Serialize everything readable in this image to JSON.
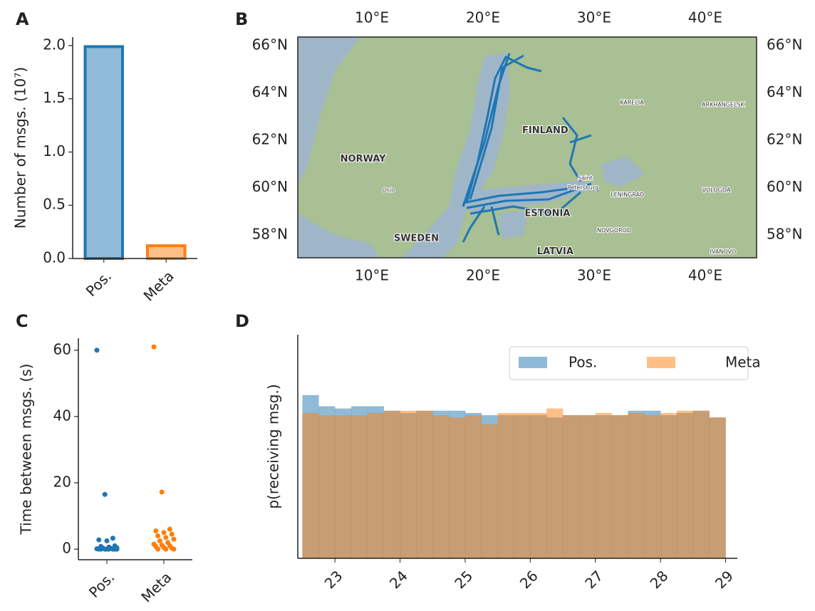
{
  "chart_data": [
    {
      "type": "bar",
      "panel_label": "A",
      "y_label": "Number of msgs. (10⁷)",
      "categories": [
        "Pos.",
        "Meta"
      ],
      "values": [
        1.99,
        0.12
      ],
      "colors": [
        "#8fbbd9",
        "#ffbf86"
      ],
      "edge_colors": [
        "#1f77b4",
        "#ff7f0e"
      ],
      "ylim": [
        0,
        2.08
      ],
      "yticks": [
        {
          "value": 0,
          "label": "0.0"
        },
        0.5,
        {
          "value": 1,
          "label": "1.0"
        },
        1.5,
        {
          "value": 2,
          "label": "2.0"
        }
      ]
    },
    {
      "type": "map",
      "panel_label": "B",
      "xlim": [
        3.33,
        44.62
      ],
      "ylim": [
        57.04,
        66.36
      ],
      "xticks": [
        {
          "value": 10,
          "label": "10°E"
        },
        {
          "value": 20,
          "label": "20°E"
        },
        {
          "value": 30,
          "label": "30°E"
        },
        {
          "value": 40,
          "label": "40°E"
        }
      ],
      "yticks": [
        {
          "value": 58,
          "label": "58°N"
        },
        {
          "value": 60,
          "label": "60°N"
        },
        {
          "value": 62,
          "label": "62°N"
        },
        {
          "value": 64,
          "label": "64°N"
        },
        {
          "value": 66,
          "label": "66°N"
        }
      ],
      "place_labels": [
        {
          "text": "NORWAY",
          "lon": 9.2,
          "lat": 61.2
        },
        {
          "text": "FINLAND",
          "lon": 25.6,
          "lat": 62.4
        },
        {
          "text": "SWEDEN",
          "lon": 14.0,
          "lat": 57.85
        },
        {
          "text": "ESTONIA",
          "lon": 25.8,
          "lat": 58.9
        },
        {
          "text": "LATVIA",
          "lon": 26.5,
          "lat": 57.3
        },
        {
          "text": "KARELIA",
          "lon": 33.4,
          "lat": 63.6
        },
        {
          "text": "ARKHANGELSK",
          "lon": 41.6,
          "lat": 63.5
        },
        {
          "text": "LENINGRAD",
          "lon": 33.0,
          "lat": 59.7
        },
        {
          "text": "VOLOGDA",
          "lon": 41.0,
          "lat": 59.9
        },
        {
          "text": "NOVGOROD",
          "lon": 31.8,
          "lat": 58.2
        },
        {
          "text": "IVANOVO",
          "lon": 41.6,
          "lat": 57.3
        },
        {
          "text": "Oslo",
          "lon": 11.5,
          "lat": 59.9
        },
        {
          "text": "Saint",
          "lon": 29.2,
          "lat": 60.4
        },
        {
          "text": "Petersburg",
          "lon": 29.0,
          "lat": 60.0
        }
      ]
    },
    {
      "type": "strip",
      "panel_label": "C",
      "y_label": "Time between msgs. (s)",
      "categories": [
        "Pos.",
        "Meta"
      ],
      "ylim": [
        -3.2,
        63.6
      ],
      "yticks": [
        0,
        20,
        40,
        60
      ],
      "series": [
        {
          "name": "Pos.",
          "color": "#1f77b4",
          "values": [
            60,
            16.5,
            3.3,
            2.8,
            2.5,
            1.0,
            0.8,
            0.6,
            0.4,
            0.3,
            0.2,
            0.1,
            0,
            0,
            0,
            0,
            0,
            0,
            0,
            0
          ]
        },
        {
          "name": "Meta",
          "color": "#ff7f0e",
          "values": [
            61,
            17.2,
            6,
            5.5,
            5,
            4.5,
            4,
            3.5,
            3,
            2.5,
            2,
            1.5,
            1.2,
            1,
            0.8,
            0.5,
            0.3,
            0,
            0,
            0
          ]
        }
      ]
    },
    {
      "type": "histogram",
      "panel_label": "D",
      "y_label": "p(receiving msg.)",
      "xlim": [
        22.43,
        29.18
      ],
      "ylim": [
        0,
        1
      ],
      "xticks": [
        23,
        24,
        25,
        26,
        27,
        28,
        29
      ],
      "bins": [
        22.5,
        22.75,
        23,
        23.25,
        23.5,
        23.75,
        24,
        24.25,
        24.5,
        24.75,
        25,
        25.25,
        25.5,
        25.75,
        26,
        26.25,
        26.5,
        26.75,
        27,
        27.25,
        27.5,
        27.75,
        28,
        28.25,
        28.5,
        28.75,
        29
      ],
      "series": [
        {
          "name": "Pos.",
          "color": "#1f77b4",
          "values": [
            0.73,
            0.68,
            0.67,
            0.68,
            0.68,
            0.66,
            0.65,
            0.66,
            0.66,
            0.66,
            0.65,
            0.64,
            0.64,
            0.64,
            0.64,
            0.63,
            0.64,
            0.64,
            0.64,
            0.64,
            0.66,
            0.66,
            0.64,
            0.65,
            0.66,
            0.63
          ]
        },
        {
          "name": "Meta",
          "color": "#ff7f0e",
          "values": [
            0.65,
            0.64,
            0.64,
            0.64,
            0.65,
            0.66,
            0.66,
            0.66,
            0.64,
            0.63,
            0.64,
            0.6,
            0.65,
            0.65,
            0.65,
            0.67,
            0.64,
            0.64,
            0.65,
            0.64,
            0.65,
            0.64,
            0.65,
            0.66,
            0.66,
            0.63
          ]
        }
      ]
    }
  ]
}
